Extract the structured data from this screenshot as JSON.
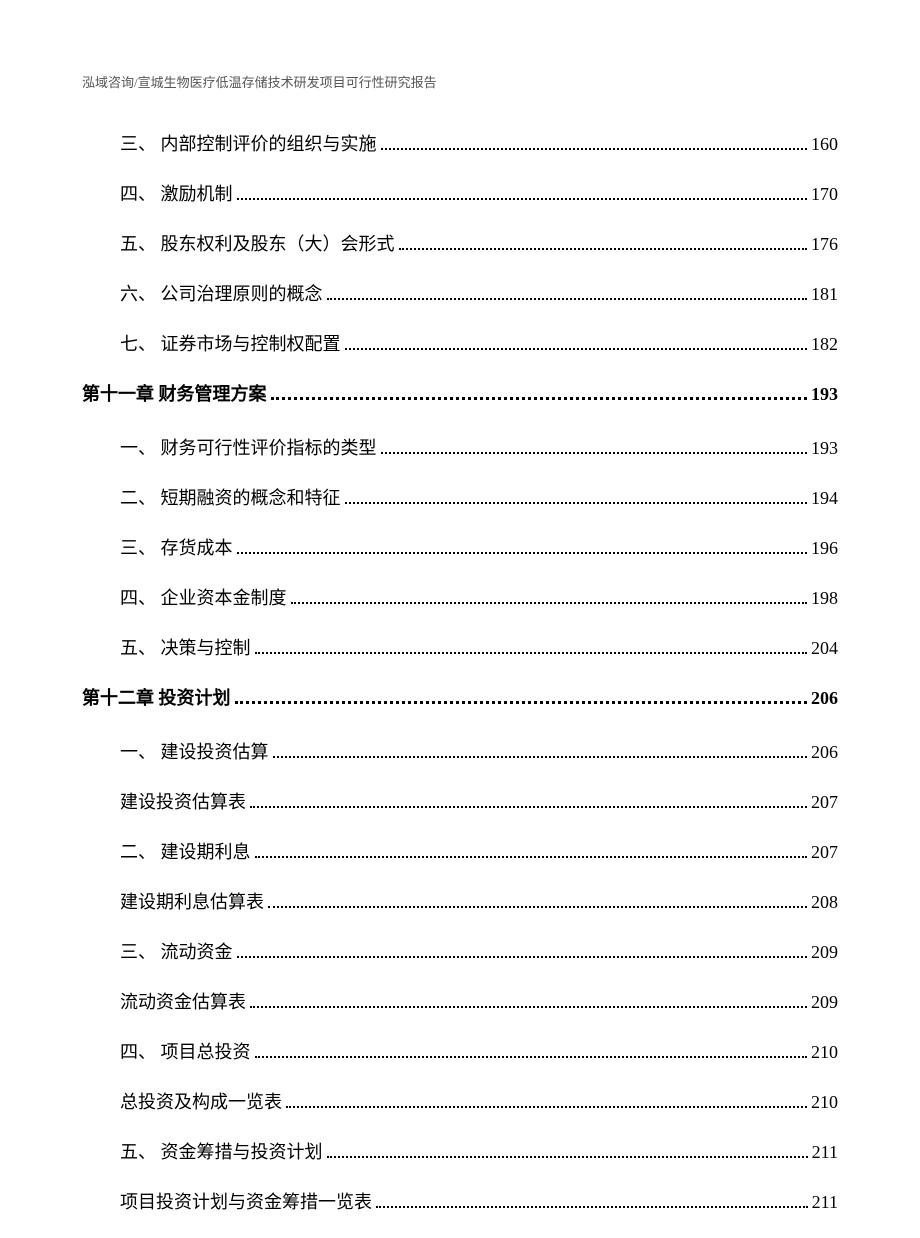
{
  "header_text": "泓域咨询/宣城生物医疗低温存储技术研发项目可行性研究报告",
  "text_color": "#000000",
  "header_color": "#555555",
  "background_color": "#ffffff",
  "font_size_body": 18,
  "font_size_header": 13,
  "toc": [
    {
      "type": "sub",
      "label": "三、 内部控制评价的组织与实施",
      "page": "160"
    },
    {
      "type": "sub",
      "label": "四、 激励机制",
      "page": "170"
    },
    {
      "type": "sub",
      "label": "五、 股东权利及股东（大）会形式",
      "page": "176"
    },
    {
      "type": "sub",
      "label": "六、 公司治理原则的概念",
      "page": "181"
    },
    {
      "type": "sub",
      "label": "七、 证券市场与控制权配置",
      "page": "182"
    },
    {
      "type": "chapter",
      "label": "第十一章 财务管理方案",
      "page": "193"
    },
    {
      "type": "sub",
      "label": "一、 财务可行性评价指标的类型",
      "page": "193"
    },
    {
      "type": "sub",
      "label": "二、 短期融资的概念和特征",
      "page": "194"
    },
    {
      "type": "sub",
      "label": "三、 存货成本",
      "page": "196"
    },
    {
      "type": "sub",
      "label": "四、 企业资本金制度",
      "page": "198"
    },
    {
      "type": "sub",
      "label": "五、 决策与控制",
      "page": "204"
    },
    {
      "type": "chapter",
      "label": "第十二章 投资计划",
      "page": "206"
    },
    {
      "type": "sub",
      "label": "一、 建设投资估算",
      "page": "206"
    },
    {
      "type": "sub",
      "label": "建设投资估算表",
      "page": "207"
    },
    {
      "type": "sub",
      "label": "二、 建设期利息",
      "page": "207"
    },
    {
      "type": "sub",
      "label": "建设期利息估算表",
      "page": "208"
    },
    {
      "type": "sub",
      "label": "三、 流动资金",
      "page": "209"
    },
    {
      "type": "sub",
      "label": "流动资金估算表",
      "page": "209"
    },
    {
      "type": "sub",
      "label": "四、 项目总投资",
      "page": "210"
    },
    {
      "type": "sub",
      "label": "总投资及构成一览表",
      "page": "210"
    },
    {
      "type": "sub",
      "label": "五、 资金筹措与投资计划",
      "page": "211"
    },
    {
      "type": "sub",
      "label": "项目投资计划与资金筹措一览表",
      "page": "211"
    }
  ]
}
